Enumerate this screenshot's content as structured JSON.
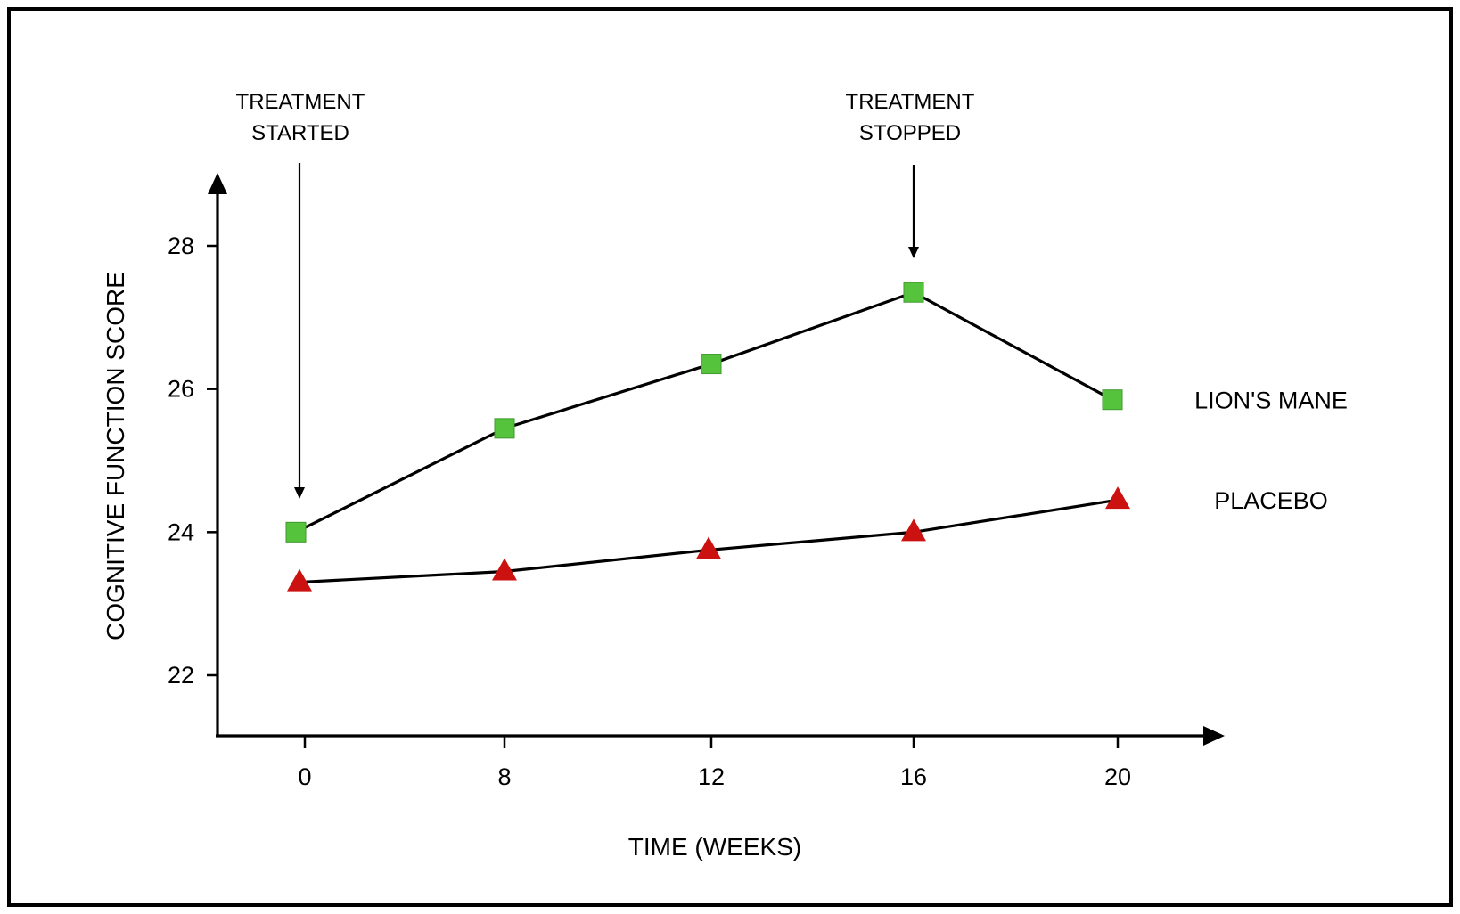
{
  "chart_data": {
    "type": "line",
    "x": [
      0,
      8,
      12,
      16,
      20
    ],
    "x_tick_labels": [
      "0",
      "8",
      "12",
      "16",
      "20"
    ],
    "y_ticks": [
      22,
      24,
      26,
      28
    ],
    "y_tick_labels": [
      "22",
      "24",
      "26",
      "28"
    ],
    "ylim": [
      21.2,
      29.0
    ],
    "xlabel": "TIME (WEEKS)",
    "ylabel": "COGNITIVE FUNCTION SCORE",
    "grid": false,
    "series": [
      {
        "name": "LION'S MANE",
        "marker": "square",
        "color": "#55c43c",
        "values": [
          24.0,
          25.45,
          26.35,
          27.35,
          25.85
        ]
      },
      {
        "name": "PLACEBO",
        "marker": "triangle",
        "color": "#cc1111",
        "values": [
          23.3,
          23.45,
          23.75,
          24.0,
          24.45
        ]
      }
    ],
    "annotations": [
      {
        "lines": [
          "TREATMENT",
          "STARTED"
        ],
        "x": 0
      },
      {
        "lines": [
          "TREATMENT",
          "STOPPED"
        ],
        "x": 16
      }
    ]
  }
}
